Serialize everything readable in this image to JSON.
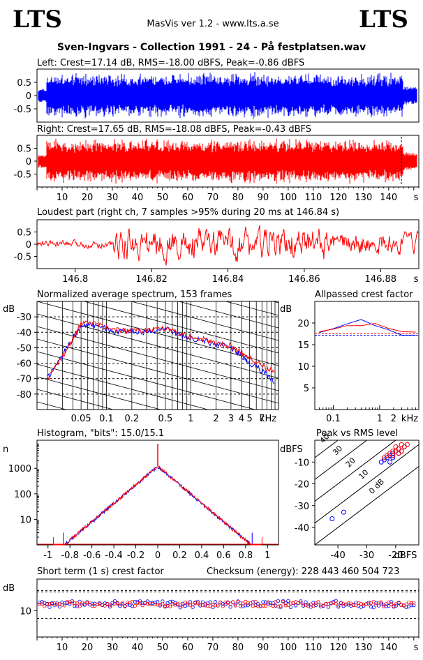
{
  "header": {
    "logo_left": "LTS",
    "logo_right": "LTS",
    "app_version": "MasVis ver 1.2 - www.lts.a.se",
    "title": "Sven-Ingvars - Collection 1991 - 24 - På festplatsen.wav"
  },
  "colors": {
    "left": "#0000ff",
    "right": "#ff0000",
    "grid": "#000000"
  },
  "chart_data": [
    {
      "type": "line",
      "title": "Left: Crest=17.14 dB, RMS=-18.00 dBFS, Peak=-0.86 dBFS",
      "series": [
        {
          "name": "Left",
          "color": "#0000ff"
        }
      ],
      "ylim": [
        -1,
        1
      ],
      "ytick_labels": [
        "0.5",
        "0",
        "-0.5"
      ],
      "xlim": [
        0,
        152
      ],
      "xlabel": "s"
    },
    {
      "type": "line",
      "title": "Right: Crest=17.65 dB, RMS=-18.08 dBFS, Peak=-0.43 dBFS",
      "series": [
        {
          "name": "Right",
          "color": "#ff0000"
        }
      ],
      "ylim": [
        -1,
        1
      ],
      "ytick_labels": [
        "0.5",
        "0",
        "-0.5"
      ],
      "xlim": [
        0,
        152
      ],
      "xtick_labels": [
        "10",
        "20",
        "30",
        "40",
        "50",
        "60",
        "70",
        "80",
        "90",
        "100",
        "110",
        "120",
        "130",
        "140"
      ],
      "xlabel": "s"
    },
    {
      "type": "line",
      "title": "Loudest part (right ch, 7 samples >95% during 20 ms at 146.84 s)",
      "series": [
        {
          "name": "Right",
          "color": "#ff0000"
        }
      ],
      "xlim": [
        146.79,
        146.89
      ],
      "ylim": [
        -1,
        1
      ],
      "ytick_labels": [
        "0.5",
        "0",
        "-0.5"
      ],
      "xtick_labels": [
        "146.8",
        "146.82",
        "146.84",
        "146.86",
        "146.88"
      ],
      "xlabel": "s"
    },
    {
      "type": "line",
      "title": "Normalized average spectrum, 153 frames",
      "xscale": "log",
      "xlabel": "kHz",
      "ylabel": "dB",
      "xtick_labels": [
        "0.05",
        "0.1",
        "0.2",
        "0.5",
        "1",
        "2",
        "3",
        "4",
        "5",
        "7"
      ],
      "ytick_labels": [
        "-30",
        "-40",
        "-50",
        "-60",
        "-70",
        "-80"
      ],
      "ylim": [
        -90,
        -20
      ],
      "series": [
        {
          "name": "Left",
          "color": "#0000ff",
          "x": [
            0.02,
            0.03,
            0.04,
            0.05,
            0.07,
            0.1,
            0.15,
            0.2,
            0.3,
            0.5,
            0.7,
            1,
            1.5,
            2,
            3,
            4,
            5,
            7,
            10
          ],
          "y": [
            -70,
            -55,
            -44,
            -36,
            -35,
            -38,
            -40,
            -39,
            -40,
            -38,
            -41,
            -44,
            -46,
            -48,
            -50,
            -55,
            -60,
            -65,
            -72
          ]
        },
        {
          "name": "Right",
          "color": "#ff0000",
          "x": [
            0.02,
            0.03,
            0.04,
            0.05,
            0.07,
            0.1,
            0.15,
            0.2,
            0.3,
            0.5,
            0.7,
            1,
            1.5,
            2,
            3,
            4,
            5,
            7,
            10
          ],
          "y": [
            -70,
            -56,
            -44,
            -35,
            -34,
            -37,
            -39,
            -39,
            -39,
            -37,
            -40,
            -43,
            -45,
            -47,
            -49,
            -53,
            -57,
            -61,
            -67
          ]
        }
      ]
    },
    {
      "type": "line",
      "title": "Allpassed crest factor",
      "xscale": "log",
      "xlabel": "kHz",
      "ylabel": "dB",
      "xtick_labels": [
        "0.1",
        "1",
        "2"
      ],
      "ytick_labels": [
        "20",
        "15",
        "10",
        "5"
      ],
      "ylim": [
        0,
        25
      ],
      "series": [
        {
          "name": "Left",
          "color": "#0000ff",
          "x": [
            0.05,
            0.1,
            0.2,
            0.4,
            0.8,
            1.5,
            3,
            6
          ],
          "y": [
            17.8,
            18.7,
            19.8,
            20.8,
            19.4,
            18.5,
            17.2,
            17.2
          ]
        },
        {
          "name": "Right",
          "color": "#ff0000",
          "x": [
            0.05,
            0.1,
            0.2,
            0.4,
            0.8,
            1.5,
            3,
            6
          ],
          "y": [
            18.0,
            18.6,
            19.4,
            19.4,
            19.9,
            18.8,
            18.0,
            17.9
          ]
        }
      ],
      "reference_levels": [
        {
          "color": "#0000ff",
          "y": 17.14
        },
        {
          "color": "#ff0000",
          "y": 17.65
        }
      ]
    },
    {
      "type": "line",
      "title": "Histogram, \"bits\": 15.0/15.1",
      "ylabel": "n",
      "yscale": "log",
      "xtick_labels": [
        "-1",
        "-0.8",
        "-0.6",
        "-0.4",
        "-0.2",
        "0",
        "0.2",
        "0.4",
        "0.6",
        "0.8",
        "1"
      ],
      "ytick_labels": [
        "1000",
        "100",
        "10"
      ],
      "xlim": [
        -1.1,
        1.1
      ],
      "series": [
        {
          "name": "Left",
          "color": "#0000ff",
          "x": [
            -0.86,
            -0.8,
            -0.6,
            -0.4,
            -0.2,
            0,
            0.2,
            0.4,
            0.6,
            0.8,
            0.86
          ],
          "y": [
            3,
            5,
            30,
            150,
            500,
            1200,
            500,
            150,
            30,
            5,
            3
          ]
        },
        {
          "name": "Right",
          "color": "#ff0000",
          "x": [
            -0.95,
            -0.8,
            -0.6,
            -0.4,
            -0.2,
            0,
            0.2,
            0.4,
            0.6,
            0.8,
            0.95
          ],
          "y": [
            2,
            5,
            30,
            150,
            500,
            1200,
            500,
            150,
            30,
            5,
            2
          ]
        }
      ]
    },
    {
      "type": "scatter",
      "title": "Peak vs RMS level",
      "xlabel": "dBFS",
      "ylabel": "dBFS",
      "xtick_labels": [
        "-40",
        "-30",
        "-20",
        "dBFS"
      ],
      "ytick_labels": [
        "-10",
        "-20",
        "-30",
        "-40"
      ],
      "xlim": [
        -48,
        -12
      ],
      "ylim": [
        -48,
        0
      ],
      "diagonal_labels": [
        "40",
        "30",
        "20",
        "10",
        "0 dB"
      ],
      "series": [
        {
          "name": "Left",
          "color": "#0000ff",
          "x": [
            -42,
            -38,
            -25,
            -24,
            -23,
            -22,
            -21,
            -20,
            -19,
            -19,
            -18,
            -17,
            -22,
            -21
          ],
          "y": [
            -36,
            -33,
            -10,
            -9,
            -8,
            -7,
            -6,
            -5,
            -4,
            -6,
            -5,
            -3,
            -10,
            -8
          ]
        },
        {
          "name": "Right",
          "color": "#ff0000",
          "x": [
            -24,
            -23,
            -22,
            -21,
            -20,
            -20,
            -19,
            -18,
            -18,
            -17,
            -16,
            -19,
            -21
          ],
          "y": [
            -8,
            -7,
            -6,
            -5,
            -5,
            -3,
            -4,
            -5,
            -2,
            -3,
            -2,
            -6,
            -7
          ]
        }
      ]
    },
    {
      "type": "scatter",
      "title": "Short term (1 s) crest factor",
      "checksum": "Checksum (energy):   228 443 460 504 723",
      "ylabel": "dB",
      "ytick_labels": [
        "10"
      ],
      "xlim": [
        0,
        152
      ],
      "ylim": [
        0,
        22
      ],
      "xtick_labels": [
        "10",
        "20",
        "30",
        "40",
        "50",
        "60",
        "70",
        "80",
        "90",
        "100",
        "110",
        "120",
        "130",
        "140"
      ],
      "xlabel": "s",
      "reference_levels": [
        {
          "color": "#0000ff",
          "y": 17.14
        },
        {
          "color": "#ff0000",
          "y": 17.65
        },
        {
          "color": "#000000",
          "y": 7
        }
      ],
      "series": [
        {
          "name": "Left",
          "color": "#0000ff",
          "mean": 12.5,
          "spread": 1.3
        },
        {
          "name": "Right",
          "color": "#ff0000",
          "mean": 12.5,
          "spread": 0.9
        }
      ]
    }
  ]
}
